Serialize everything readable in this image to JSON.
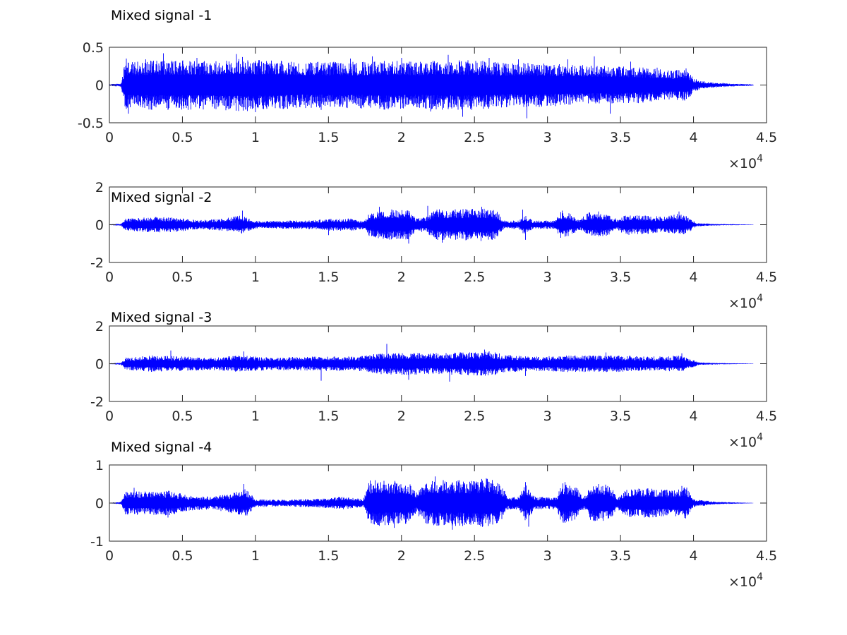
{
  "chart_data": [
    {
      "type": "line",
      "title": "Mixed signal -1",
      "xlim": [
        0,
        45000
      ],
      "ylim": [
        -0.5,
        0.5
      ],
      "xtick_labels": [
        "0",
        "0.5",
        "1",
        "1.5",
        "2",
        "2.5",
        "3",
        "3.5",
        "4",
        "4.5"
      ],
      "ytick_labels": [
        "-0.5",
        "0",
        "0.5"
      ],
      "yticks": [
        -0.5,
        0,
        0.5
      ],
      "x_exponent_base": "10",
      "x_exponent_power": "4",
      "series": [
        {
          "color": "#0000ff",
          "sample_count": 44100,
          "envelope": [
            [
              0,
              0.01
            ],
            [
              800,
              0.02
            ],
            [
              1100,
              0.3
            ],
            [
              1500,
              0.28
            ],
            [
              3000,
              0.3
            ],
            [
              5000,
              0.3
            ],
            [
              7000,
              0.3
            ],
            [
              9000,
              0.32
            ],
            [
              11000,
              0.3
            ],
            [
              13000,
              0.28
            ],
            [
              15000,
              0.28
            ],
            [
              17000,
              0.28
            ],
            [
              19000,
              0.3
            ],
            [
              21000,
              0.28
            ],
            [
              23000,
              0.3
            ],
            [
              25000,
              0.3
            ],
            [
              27000,
              0.27
            ],
            [
              29000,
              0.27
            ],
            [
              31000,
              0.25
            ],
            [
              33000,
              0.24
            ],
            [
              35000,
              0.23
            ],
            [
              37000,
              0.21
            ],
            [
              38500,
              0.17
            ],
            [
              39500,
              0.2
            ],
            [
              40000,
              0.08
            ],
            [
              41000,
              0.035
            ],
            [
              42500,
              0.02
            ],
            [
              44100,
              0.008
            ]
          ],
          "peaks": [
            [
              1150,
              0.35
            ],
            [
              1300,
              -0.38
            ],
            [
              2500,
              0.34
            ],
            [
              3700,
              0.42
            ],
            [
              4000,
              -0.33
            ],
            [
              6000,
              0.36
            ],
            [
              8700,
              0.41
            ],
            [
              9100,
              0.37
            ],
            [
              10000,
              -0.36
            ],
            [
              14500,
              -0.33
            ],
            [
              16500,
              0.35
            ],
            [
              18000,
              0.38
            ],
            [
              20000,
              0.36
            ],
            [
              22000,
              -0.35
            ],
            [
              23200,
              0.4
            ],
            [
              24200,
              -0.42
            ],
            [
              26000,
              0.36
            ],
            [
              28000,
              0.34
            ],
            [
              28600,
              -0.44
            ],
            [
              31400,
              0.34
            ],
            [
              33200,
              0.38
            ],
            [
              34300,
              -0.38
            ],
            [
              35700,
              0.31
            ],
            [
              37500,
              0.23
            ],
            [
              39500,
              0.22
            ]
          ]
        }
      ]
    },
    {
      "type": "line",
      "title": "Mixed signal -2",
      "xlim": [
        0,
        45000
      ],
      "ylim": [
        -2,
        2
      ],
      "xtick_labels": [
        "0",
        "0.5",
        "1",
        "1.5",
        "2",
        "2.5",
        "3",
        "3.5",
        "4",
        "4.5"
      ],
      "ytick_labels": [
        "-2",
        "0",
        "2"
      ],
      "yticks": [
        -2,
        0,
        2
      ],
      "x_exponent_base": "10",
      "x_exponent_power": "4",
      "series": [
        {
          "color": "#0000ff",
          "sample_count": 44100,
          "envelope": [
            [
              0,
              0.02
            ],
            [
              800,
              0.05
            ],
            [
              1100,
              0.3
            ],
            [
              3000,
              0.38
            ],
            [
              4500,
              0.35
            ],
            [
              6000,
              0.22
            ],
            [
              7500,
              0.28
            ],
            [
              9000,
              0.45
            ],
            [
              10000,
              0.18
            ],
            [
              12000,
              0.2
            ],
            [
              14000,
              0.22
            ],
            [
              15000,
              0.28
            ],
            [
              16500,
              0.3
            ],
            [
              17500,
              0.2
            ],
            [
              17800,
              0.55
            ],
            [
              19000,
              0.75
            ],
            [
              20500,
              0.7
            ],
            [
              21000,
              0.3
            ],
            [
              21800,
              0.4
            ],
            [
              22200,
              0.75
            ],
            [
              24000,
              0.75
            ],
            [
              25500,
              0.8
            ],
            [
              26500,
              0.7
            ],
            [
              27000,
              0.2
            ],
            [
              28000,
              0.2
            ],
            [
              28400,
              0.5
            ],
            [
              29000,
              0.2
            ],
            [
              30500,
              0.2
            ],
            [
              30900,
              0.65
            ],
            [
              31500,
              0.55
            ],
            [
              32200,
              0.25
            ],
            [
              32800,
              0.6
            ],
            [
              34000,
              0.55
            ],
            [
              34800,
              0.25
            ],
            [
              35300,
              0.5
            ],
            [
              36500,
              0.45
            ],
            [
              38000,
              0.4
            ],
            [
              39200,
              0.55
            ],
            [
              39800,
              0.3
            ],
            [
              40200,
              0.08
            ],
            [
              41500,
              0.04
            ],
            [
              44100,
              0.01
            ]
          ],
          "peaks": [
            [
              9100,
              0.75
            ],
            [
              15000,
              -0.55
            ],
            [
              18500,
              0.95
            ],
            [
              20500,
              -1.0
            ],
            [
              21800,
              1.0
            ],
            [
              22800,
              -0.95
            ],
            [
              25500,
              0.95
            ],
            [
              28300,
              0.8
            ],
            [
              28500,
              -0.8
            ],
            [
              31000,
              0.75
            ],
            [
              33500,
              0.7
            ],
            [
              39000,
              0.7
            ]
          ]
        }
      ]
    },
    {
      "type": "line",
      "title": "Mixed signal -3",
      "xlim": [
        0,
        45000
      ],
      "ylim": [
        -2,
        2
      ],
      "xtick_labels": [
        "0",
        "0.5",
        "1",
        "1.5",
        "2",
        "2.5",
        "3",
        "3.5",
        "4",
        "4.5"
      ],
      "ytick_labels": [
        "-2",
        "0",
        "2"
      ],
      "yticks": [
        -2,
        0,
        2
      ],
      "x_exponent_base": "10",
      "x_exponent_power": "4",
      "series": [
        {
          "color": "#0000ff",
          "sample_count": 44100,
          "envelope": [
            [
              0,
              0.02
            ],
            [
              800,
              0.05
            ],
            [
              1100,
              0.3
            ],
            [
              3000,
              0.4
            ],
            [
              5000,
              0.35
            ],
            [
              7000,
              0.3
            ],
            [
              9000,
              0.4
            ],
            [
              11000,
              0.3
            ],
            [
              13000,
              0.33
            ],
            [
              15000,
              0.35
            ],
            [
              17000,
              0.35
            ],
            [
              18500,
              0.5
            ],
            [
              20000,
              0.55
            ],
            [
              22000,
              0.5
            ],
            [
              24000,
              0.55
            ],
            [
              26000,
              0.6
            ],
            [
              27500,
              0.4
            ],
            [
              29000,
              0.35
            ],
            [
              31000,
              0.4
            ],
            [
              33000,
              0.4
            ],
            [
              35000,
              0.4
            ],
            [
              37000,
              0.35
            ],
            [
              39000,
              0.4
            ],
            [
              40000,
              0.2
            ],
            [
              40300,
              0.07
            ],
            [
              41500,
              0.04
            ],
            [
              44100,
              0.01
            ]
          ],
          "peaks": [
            [
              4200,
              0.7
            ],
            [
              9200,
              0.65
            ],
            [
              14500,
              -0.9
            ],
            [
              19000,
              1.05
            ],
            [
              20500,
              -0.85
            ],
            [
              23300,
              -0.95
            ],
            [
              25700,
              0.75
            ],
            [
              28500,
              -0.65
            ],
            [
              34000,
              0.6
            ],
            [
              39200,
              0.55
            ]
          ]
        }
      ]
    },
    {
      "type": "line",
      "title": "Mixed signal -4",
      "xlim": [
        0,
        45000
      ],
      "ylim": [
        -1,
        1
      ],
      "xtick_labels": [
        "0",
        "0.5",
        "1",
        "1.5",
        "2",
        "2.5",
        "3",
        "3.5",
        "4",
        "4.5"
      ],
      "ytick_labels": [
        "-1",
        "0",
        "1"
      ],
      "yticks": [
        -1,
        0,
        1
      ],
      "x_exponent_base": "10",
      "x_exponent_power": "4",
      "series": [
        {
          "color": "#0000ff",
          "sample_count": 44100,
          "envelope": [
            [
              0,
              0.01
            ],
            [
              800,
              0.03
            ],
            [
              1100,
              0.28
            ],
            [
              3000,
              0.28
            ],
            [
              4000,
              0.3
            ],
            [
              5500,
              0.18
            ],
            [
              7000,
              0.15
            ],
            [
              8500,
              0.25
            ],
            [
              9300,
              0.35
            ],
            [
              10000,
              0.1
            ],
            [
              12000,
              0.08
            ],
            [
              14000,
              0.1
            ],
            [
              16000,
              0.15
            ],
            [
              17400,
              0.1
            ],
            [
              17800,
              0.55
            ],
            [
              19000,
              0.55
            ],
            [
              20500,
              0.5
            ],
            [
              21000,
              0.25
            ],
            [
              21800,
              0.55
            ],
            [
              23000,
              0.55
            ],
            [
              25000,
              0.55
            ],
            [
              26000,
              0.6
            ],
            [
              26800,
              0.45
            ],
            [
              27300,
              0.15
            ],
            [
              28000,
              0.15
            ],
            [
              28500,
              0.45
            ],
            [
              29200,
              0.15
            ],
            [
              30600,
              0.15
            ],
            [
              31000,
              0.5
            ],
            [
              32000,
              0.4
            ],
            [
              32500,
              0.15
            ],
            [
              33000,
              0.45
            ],
            [
              34200,
              0.45
            ],
            [
              34800,
              0.15
            ],
            [
              35500,
              0.35
            ],
            [
              37500,
              0.35
            ],
            [
              38500,
              0.3
            ],
            [
              39500,
              0.4
            ],
            [
              40000,
              0.1
            ],
            [
              41500,
              0.03
            ],
            [
              44100,
              0.005
            ]
          ],
          "peaks": [
            [
              1700,
              0.4
            ],
            [
              4000,
              -0.38
            ],
            [
              9200,
              0.5
            ],
            [
              18200,
              0.6
            ],
            [
              19500,
              -0.65
            ],
            [
              22300,
              0.7
            ],
            [
              23500,
              -0.7
            ],
            [
              25800,
              0.65
            ],
            [
              28500,
              0.55
            ],
            [
              28700,
              -0.62
            ],
            [
              31200,
              0.55
            ],
            [
              33500,
              0.5
            ],
            [
              39200,
              0.45
            ]
          ]
        }
      ]
    }
  ]
}
